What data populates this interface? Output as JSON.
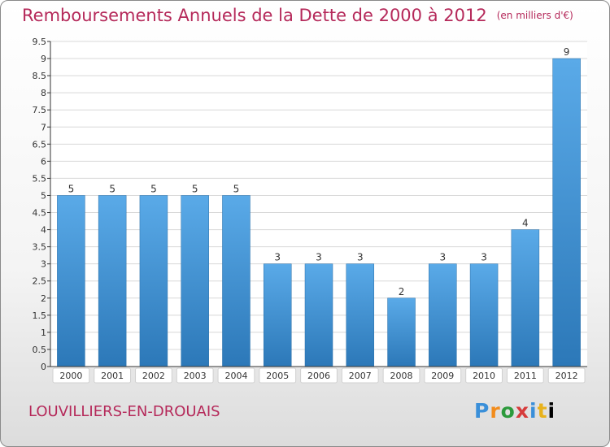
{
  "header": {
    "title": "Remboursements Annuels de la Dette de 2000 à 2012",
    "subtitle": "(en milliers d'€)"
  },
  "footer": {
    "city": "LOUVILLIERS-EN-DROUAIS",
    "brand_letters": [
      "P",
      "r",
      "o",
      "x",
      "i",
      "t",
      "i"
    ]
  },
  "colors": {
    "text_accent": "#b5295a",
    "bar_top": "#5aaae8",
    "bar_bottom": "#2c78b8",
    "grid": "#d8d8d8"
  },
  "chart_data": {
    "type": "bar",
    "title": "Remboursements Annuels de la Dette de 2000 à 2012",
    "subtitle": "(en milliers d'€)",
    "xlabel": "",
    "ylabel": "",
    "categories": [
      "2000",
      "2001",
      "2002",
      "2003",
      "2004",
      "2005",
      "2006",
      "2007",
      "2008",
      "2009",
      "2010",
      "2011",
      "2012"
    ],
    "values": [
      5,
      5,
      5,
      5,
      5,
      3,
      3,
      3,
      2,
      3,
      3,
      4,
      9
    ],
    "data_labels": [
      "5",
      "5",
      "5",
      "5",
      "5",
      "3",
      "3",
      "3",
      "2",
      "3",
      "3",
      "4",
      "9"
    ],
    "ylim": [
      0,
      9.5
    ],
    "yticks": [
      "0",
      "0.5",
      "1",
      "1.5",
      "2",
      "2.5",
      "3",
      "3.5",
      "4",
      "4.5",
      "5",
      "5.5",
      "6",
      "6.5",
      "7",
      "7.5",
      "8",
      "8.5",
      "9",
      "9.5"
    ],
    "ytick_values": [
      0,
      0.5,
      1,
      1.5,
      2,
      2.5,
      3,
      3.5,
      4,
      4.5,
      5,
      5.5,
      6,
      6.5,
      7,
      7.5,
      8,
      8.5,
      9,
      9.5
    ],
    "grid": true,
    "legend": "none"
  }
}
